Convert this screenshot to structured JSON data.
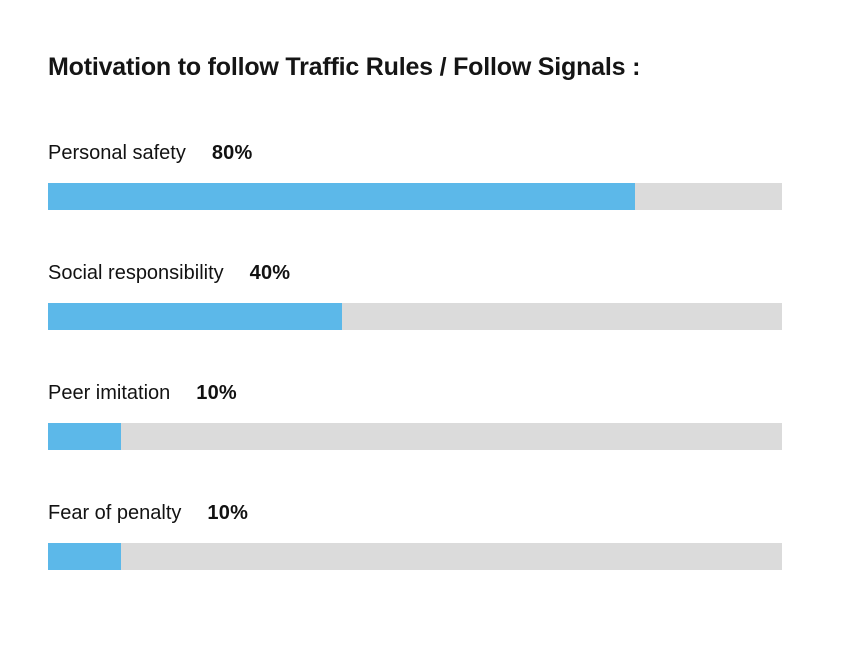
{
  "header": {
    "title": "Motivation to follow Traffic Rules / Follow Signals :"
  },
  "chart_data": {
    "type": "bar",
    "orientation": "horizontal",
    "title": "Motivation to follow Traffic Rules / Follow Signals :",
    "categories": [
      "Personal safety",
      "Social responsibility",
      "Peer imitation",
      "Fear of penalty"
    ],
    "values": [
      80,
      40,
      10,
      10
    ],
    "value_labels": [
      "80%",
      "40%",
      "10%",
      "10%"
    ],
    "xlim": [
      0,
      100
    ],
    "grid": false,
    "legend": false,
    "axes_visible": false,
    "colors": {
      "bar_fill": "#5cb8e9",
      "bar_track": "#dbdbdb",
      "text": "#121212",
      "background": "#ffffff"
    }
  }
}
